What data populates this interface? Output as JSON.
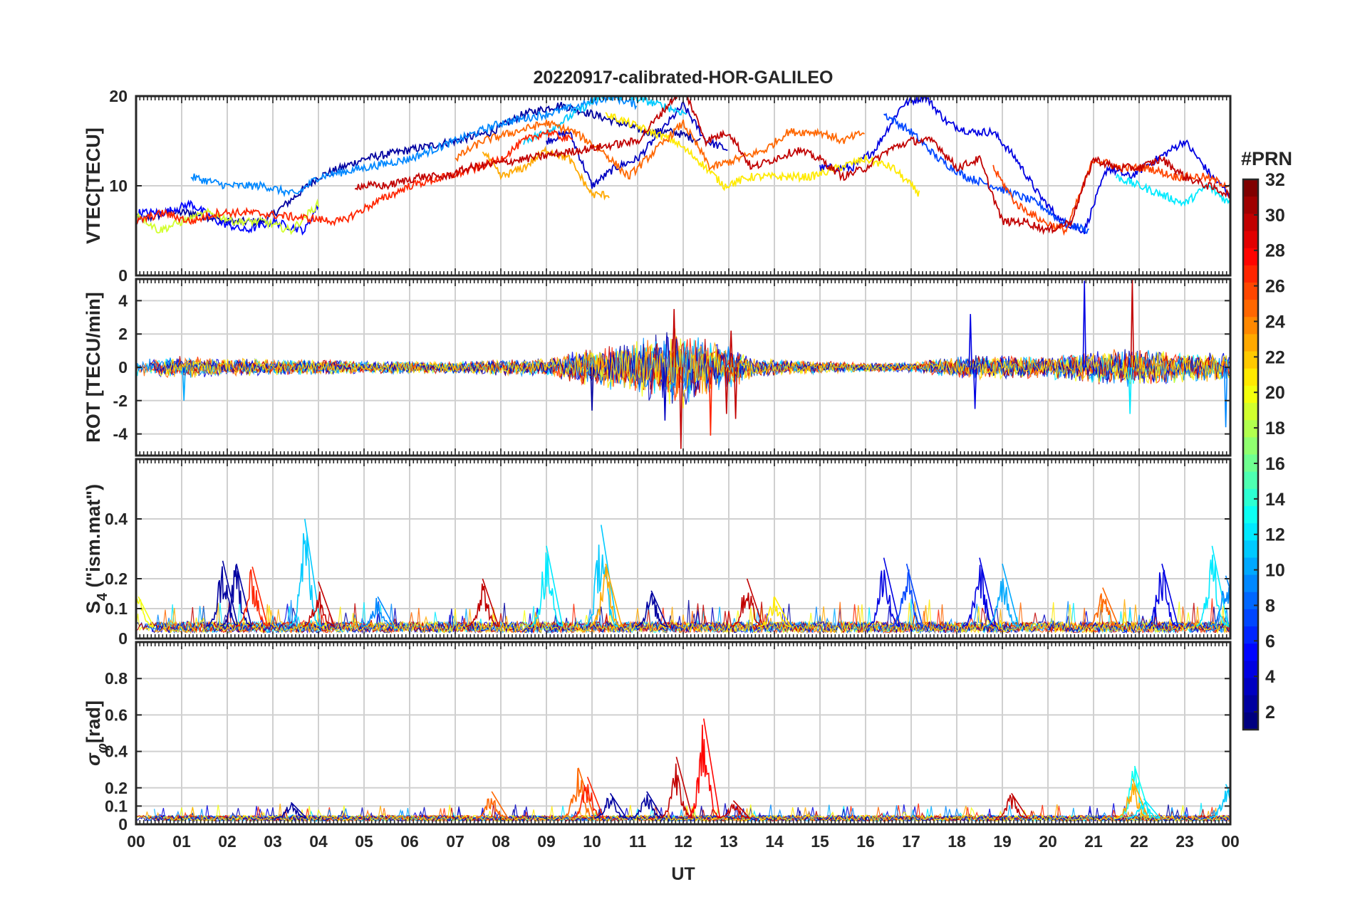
{
  "chart_data": {
    "type": "line",
    "title": "20220917-calibrated-HOR-GALILEO",
    "xlabel": "UT",
    "x_tick_labels": [
      "00",
      "01",
      "02",
      "03",
      "04",
      "05",
      "06",
      "07",
      "08",
      "09",
      "10",
      "11",
      "12",
      "13",
      "14",
      "15",
      "16",
      "17",
      "18",
      "19",
      "20",
      "21",
      "22",
      "23",
      "00"
    ],
    "xlim": [
      0,
      24
    ],
    "grid": true,
    "colorbar": {
      "title": "#PRN",
      "range": [
        1,
        32
      ],
      "tick_labels": [
        "32",
        "30",
        "28",
        "26",
        "24",
        "22",
        "20",
        "18",
        "16",
        "14",
        "12",
        "10",
        "8",
        "6",
        "4",
        "2"
      ],
      "colormap": "jet",
      "colors": [
        "#00008f",
        "#0000ff",
        "#0080ff",
        "#00ffff",
        "#80ff80",
        "#ffff00",
        "#ff8000",
        "#ff0000",
        "#800000"
      ]
    },
    "panels": [
      {
        "id": "vtec",
        "ylabel": "VTEC[TECU]",
        "ylim": [
          0,
          20
        ],
        "y_ticks": [
          0,
          10,
          20
        ],
        "y_tick_labels": [
          "0",
          "10",
          "20"
        ],
        "series": [
          {
            "prn": 2,
            "x": [
              0.0,
              0.7,
              1.2,
              2.0,
              2.8,
              3.3,
              4.0,
              5.0,
              6.0,
              7.0,
              7.8,
              8.5,
              9.3,
              10.0,
              10.6,
              11.2,
              11.8,
              12.4
            ],
            "y": [
              6,
              7,
              7,
              6,
              6,
              8,
              11,
              13,
              14,
              15,
              16,
              18,
              19,
              18,
              17,
              16,
              16,
              15
            ]
          },
          {
            "prn": 3,
            "x": [
              9.0,
              9.5,
              10.0,
              10.5,
              11.0,
              11.5,
              12.0,
              12.5,
              13.0
            ],
            "y": [
              15,
              16,
              10,
              12,
              13,
              16,
              19,
              15,
              14
            ]
          },
          {
            "prn": 4,
            "x": [
              15.0,
              15.7,
              16.2,
              16.8,
              17.3,
              17.8,
              18.3,
              18.8,
              19.3,
              19.8,
              20.3,
              20.8,
              21.3,
              21.8,
              22.4,
              23.0,
              23.6,
              24.0
            ],
            "y": [
              12,
              12,
              14,
              19,
              20,
              17,
              16,
              16,
              13,
              9,
              6,
              5,
              12,
              11,
              13,
              15,
              11,
              9
            ]
          },
          {
            "prn": 5,
            "x": [
              0.0,
              0.6,
              1.2,
              1.8,
              2.4,
              3.0,
              3.7,
              4.0
            ],
            "y": [
              7,
              7,
              8,
              6,
              5,
              6,
              5,
              8
            ]
          },
          {
            "prn": 7,
            "x": [
              16.4,
              17.0,
              17.6,
              18.2,
              18.8,
              19.3,
              19.8,
              20.3,
              20.9
            ],
            "y": [
              18,
              16,
              13,
              11,
              10,
              9,
              8,
              6,
              5
            ]
          },
          {
            "prn": 9,
            "x": [
              1.2,
              2.0,
              2.8,
              3.5,
              4.0,
              5.0,
              6.0,
              7.0,
              8.0,
              9.0,
              9.8,
              10.4,
              11.0
            ],
            "y": [
              11,
              10,
              10,
              9,
              11,
              12,
              13,
              15,
              17,
              18,
              19,
              20,
              19
            ]
          },
          {
            "prn": 11,
            "x": [
              8.5,
              9.0,
              9.6,
              10.2,
              10.8,
              11.5,
              12.1
            ],
            "y": [
              15,
              16,
              18,
              20,
              20,
              19,
              18
            ]
          },
          {
            "prn": 12,
            "x": [
              21.5,
              22.0,
              22.5,
              23.0,
              23.5,
              24.0
            ],
            "y": [
              11,
              10,
              9,
              8,
              10,
              8
            ]
          },
          {
            "prn": 19,
            "x": [
              0.0,
              0.5,
              1.0,
              1.6,
              2.2,
              2.8,
              3.4,
              4.0
            ],
            "y": [
              7,
              5,
              6,
              7,
              6,
              6,
              5,
              8
            ]
          },
          {
            "prn": 21,
            "x": [
              10.3,
              10.8,
              11.3,
              11.8,
              12.3,
              12.9,
              13.5,
              14.1,
              14.8,
              15.4,
              16.0,
              16.6,
              17.2
            ],
            "y": [
              18,
              17,
              16,
              15,
              13,
              10,
              11,
              11,
              11,
              12,
              13,
              12,
              9
            ]
          },
          {
            "prn": 23,
            "x": [
              7.6,
              8.0,
              8.5,
              9.0,
              9.5,
              10.0,
              10.4
            ],
            "y": [
              14,
              11,
              12,
              14,
              13,
              9,
              9
            ]
          },
          {
            "prn": 25,
            "x": [
              7.0,
              7.6,
              8.3,
              9.0,
              9.6,
              10.2,
              10.8,
              11.4,
              12.0,
              12.6,
              13.2,
              13.8,
              14.3,
              15.0,
              15.5,
              16.0
            ],
            "y": [
              13,
              15,
              16,
              17,
              16,
              14,
              11,
              14,
              17,
              12,
              13,
              14,
              16,
              16,
              15,
              16
            ]
          },
          {
            "prn": 26,
            "x": [
              18.8,
              19.3,
              19.9,
              20.4,
              21.0,
              21.6,
              22.2,
              22.8,
              23.4,
              24.0
            ],
            "y": [
              12,
              8,
              6,
              5,
              13,
              12,
              12,
              11,
              11,
              10
            ]
          },
          {
            "prn": 27,
            "x": [
              0.0,
              0.6,
              1.2,
              1.8,
              2.5,
              4.5,
              5.2,
              6.0,
              6.8,
              7.5,
              8.0,
              8.5,
              9.0,
              9.6
            ],
            "y": [
              6,
              7,
              6,
              7,
              7,
              6,
              8,
              10,
              11,
              12,
              13,
              15,
              16,
              15
            ]
          },
          {
            "prn": 30,
            "x": [
              4.8,
              5.5,
              6.2,
              6.8,
              7.3,
              11.0,
              11.5,
              12.0,
              12.5,
              13.0,
              13.5,
              14.0,
              14.5,
              15.0,
              15.5,
              16.0,
              16.5,
              17.0,
              17.5,
              18.0,
              18.5,
              19.0,
              19.5,
              20.0,
              20.5,
              21.0,
              21.5,
              22.0,
              22.5,
              23.0,
              23.5,
              24.0
            ],
            "y": [
              10,
              10,
              11,
              11,
              12,
              15,
              18,
              21,
              15,
              16,
              12,
              13,
              14,
              13,
              11,
              12,
              14,
              15,
              15,
              12,
              13,
              6,
              6,
              5,
              6,
              13,
              12,
              12,
              13,
              11,
              10,
              9
            ]
          }
        ]
      },
      {
        "id": "rot",
        "ylabel": "ROT [TECU/min]",
        "ylim": [
          -5.3,
          5.3
        ],
        "y_ticks": [
          -4,
          -2,
          0,
          2,
          4
        ],
        "y_tick_labels": [
          "-4",
          "-2",
          "0",
          "2",
          "4"
        ],
        "envelope_hours": [
          0,
          1,
          2,
          3,
          4,
          5,
          6,
          7,
          8,
          9,
          9.5,
          10,
          10.5,
          11,
          11.5,
          12,
          12.5,
          13,
          13.5,
          14,
          15,
          16,
          17,
          18,
          19,
          20,
          21,
          21.5,
          22,
          23,
          24
        ],
        "envelope_amplitude": [
          0.6,
          0.7,
          0.6,
          0.5,
          0.5,
          0.4,
          0.4,
          0.4,
          0.5,
          0.6,
          0.9,
          1.3,
          1.5,
          1.8,
          2.2,
          2.6,
          1.8,
          1.4,
          0.7,
          0.5,
          0.4,
          0.3,
          0.3,
          0.7,
          0.8,
          0.7,
          1.0,
          1.2,
          1.2,
          1.0,
          0.9
        ],
        "spikes": [
          {
            "x": 1.05,
            "y": -2.0,
            "prn": 10
          },
          {
            "x": 10.0,
            "y": -2.6,
            "prn": 2
          },
          {
            "x": 11.6,
            "y": -3.2,
            "prn": 3
          },
          {
            "x": 11.8,
            "y": 3.5,
            "prn": 30
          },
          {
            "x": 11.95,
            "y": -4.9,
            "prn": 30
          },
          {
            "x": 12.6,
            "y": -4.1,
            "prn": 27
          },
          {
            "x": 12.95,
            "y": -2.8,
            "prn": 30
          },
          {
            "x": 13.05,
            "y": 2.2,
            "prn": 30
          },
          {
            "x": 13.15,
            "y": -3.1,
            "prn": 30
          },
          {
            "x": 18.3,
            "y": 3.2,
            "prn": 4
          },
          {
            "x": 18.4,
            "y": -2.5,
            "prn": 4
          },
          {
            "x": 20.8,
            "y": 5.2,
            "prn": 4
          },
          {
            "x": 21.85,
            "y": 5.3,
            "prn": 30
          },
          {
            "x": 21.8,
            "y": -2.8,
            "prn": 12
          },
          {
            "x": 23.9,
            "y": -3.6,
            "prn": 9
          }
        ]
      },
      {
        "id": "s4",
        "ylabel": "S4 (\"ism.mat\")",
        "ylabel_main": "S",
        "ylabel_sub": "4",
        "ylabel_rest": " (\"ism.mat\")",
        "ylim": [
          0,
          0.6
        ],
        "y_ticks": [
          0,
          0.1,
          0.2,
          0.4
        ],
        "y_tick_labels": [
          "0",
          "0.1",
          "0.2",
          "0.4"
        ],
        "baseline": 0.04,
        "bursts": [
          {
            "x": 0.05,
            "h": 0.14,
            "prn": 20
          },
          {
            "x": 1.9,
            "h": 0.26,
            "prn": 2
          },
          {
            "x": 2.2,
            "h": 0.25,
            "prn": 2
          },
          {
            "x": 2.55,
            "h": 0.24,
            "prn": 27
          },
          {
            "x": 3.7,
            "h": 0.4,
            "prn": 11
          },
          {
            "x": 4.0,
            "h": 0.19,
            "prn": 30
          },
          {
            "x": 5.3,
            "h": 0.14,
            "prn": 9
          },
          {
            "x": 7.6,
            "h": 0.2,
            "prn": 30
          },
          {
            "x": 9.0,
            "h": 0.31,
            "prn": 12
          },
          {
            "x": 10.2,
            "h": 0.38,
            "prn": 11
          },
          {
            "x": 10.3,
            "h": 0.25,
            "prn": 23
          },
          {
            "x": 11.3,
            "h": 0.16,
            "prn": 2
          },
          {
            "x": 13.4,
            "h": 0.2,
            "prn": 30
          },
          {
            "x": 14.0,
            "h": 0.14,
            "prn": 21
          },
          {
            "x": 16.4,
            "h": 0.27,
            "prn": 4
          },
          {
            "x": 16.9,
            "h": 0.25,
            "prn": 7
          },
          {
            "x": 18.5,
            "h": 0.27,
            "prn": 4
          },
          {
            "x": 19.0,
            "h": 0.25,
            "prn": 10
          },
          {
            "x": 21.2,
            "h": 0.17,
            "prn": 25
          },
          {
            "x": 22.5,
            "h": 0.25,
            "prn": 4
          },
          {
            "x": 23.6,
            "h": 0.31,
            "prn": 12
          },
          {
            "x": 23.9,
            "h": 0.21,
            "prn": 9
          }
        ]
      },
      {
        "id": "sigma_phi",
        "ylabel": "σφ[rad]",
        "ylabel_main": "σ",
        "ylabel_sub": "φ",
        "ylabel_rest": "[rad]",
        "ylim": [
          0,
          1.0
        ],
        "y_ticks": [
          0,
          0.1,
          0.2,
          0.4,
          0.6,
          0.8
        ],
        "y_tick_labels": [
          "0",
          "0.1",
          "0.2",
          "0.4",
          "0.6",
          "0.8"
        ],
        "baseline": 0.035,
        "bursts": [
          {
            "x": 3.4,
            "h": 0.12,
            "prn": 2
          },
          {
            "x": 7.8,
            "h": 0.18,
            "prn": 25
          },
          {
            "x": 9.7,
            "h": 0.31,
            "prn": 25
          },
          {
            "x": 9.9,
            "h": 0.26,
            "prn": 27
          },
          {
            "x": 10.4,
            "h": 0.17,
            "prn": 2
          },
          {
            "x": 11.2,
            "h": 0.18,
            "prn": 2
          },
          {
            "x": 11.85,
            "h": 0.37,
            "prn": 30
          },
          {
            "x": 12.45,
            "h": 0.58,
            "prn": 28
          },
          {
            "x": 13.1,
            "h": 0.13,
            "prn": 30
          },
          {
            "x": 19.2,
            "h": 0.17,
            "prn": 30
          },
          {
            "x": 21.9,
            "h": 0.32,
            "prn": 13
          },
          {
            "x": 21.85,
            "h": 0.25,
            "prn": 23
          },
          {
            "x": 22.1,
            "h": 0.14,
            "prn": 12
          },
          {
            "x": 23.9,
            "h": 0.22,
            "prn": 11
          }
        ]
      }
    ]
  }
}
